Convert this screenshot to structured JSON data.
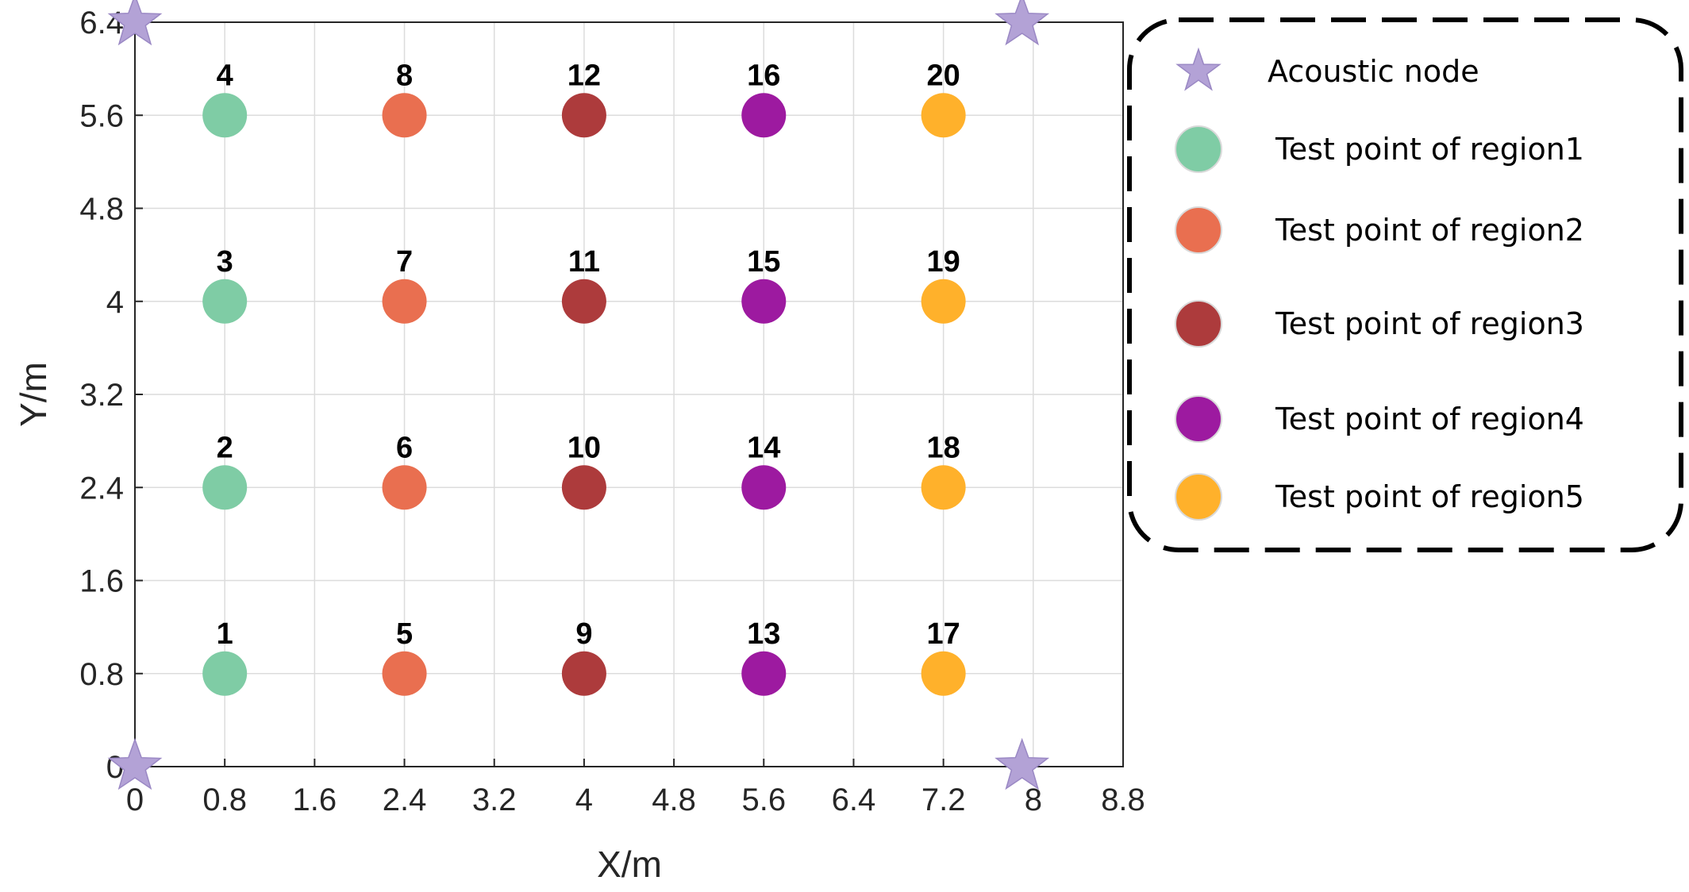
{
  "chart_data": {
    "type": "scatter",
    "xlabel": "X/m",
    "ylabel": "Y/m",
    "xlim": [
      0,
      8.8
    ],
    "ylim": [
      0,
      6.4
    ],
    "xticks": [
      "0",
      "0.8",
      "1.6",
      "2.4",
      "3.2",
      "4",
      "4.8",
      "5.6",
      "6.4",
      "7.2",
      "8",
      "8.8"
    ],
    "yticks": [
      "0",
      "0.8",
      "1.6",
      "2.4",
      "3.2",
      "4",
      "4.8",
      "5.6",
      "6.4"
    ],
    "grid": true,
    "legend_position": "right",
    "series": [
      {
        "name": "Acoustic node",
        "marker": "star",
        "color": "#b3a2d6",
        "points": [
          {
            "x": 0,
            "y": 6.4
          },
          {
            "x": 7.9,
            "y": 6.4
          },
          {
            "x": 0,
            "y": 0
          },
          {
            "x": 7.9,
            "y": 0
          }
        ]
      },
      {
        "name": "Test point of region1",
        "marker": "circle",
        "color": "#7fcca5",
        "points": [
          {
            "x": 0.8,
            "y": 0.8,
            "label": "1"
          },
          {
            "x": 0.8,
            "y": 2.4,
            "label": "2"
          },
          {
            "x": 0.8,
            "y": 4.0,
            "label": "3"
          },
          {
            "x": 0.8,
            "y": 5.6,
            "label": "4"
          }
        ]
      },
      {
        "name": "Test point of region2",
        "marker": "circle",
        "color": "#e96f50",
        "points": [
          {
            "x": 2.4,
            "y": 0.8,
            "label": "5"
          },
          {
            "x": 2.4,
            "y": 2.4,
            "label": "6"
          },
          {
            "x": 2.4,
            "y": 4.0,
            "label": "7"
          },
          {
            "x": 2.4,
            "y": 5.6,
            "label": "8"
          }
        ]
      },
      {
        "name": "Test point of region3",
        "marker": "circle",
        "color": "#ad3b3c",
        "points": [
          {
            "x": 4.0,
            "y": 0.8,
            "label": "9"
          },
          {
            "x": 4.0,
            "y": 2.4,
            "label": "10"
          },
          {
            "x": 4.0,
            "y": 4.0,
            "label": "11"
          },
          {
            "x": 4.0,
            "y": 5.6,
            "label": "12"
          }
        ]
      },
      {
        "name": "Test point of region4",
        "marker": "circle",
        "color": "#9d1aa0",
        "points": [
          {
            "x": 5.6,
            "y": 0.8,
            "label": "13"
          },
          {
            "x": 5.6,
            "y": 2.4,
            "label": "14"
          },
          {
            "x": 5.6,
            "y": 4.0,
            "label": "15"
          },
          {
            "x": 5.6,
            "y": 5.6,
            "label": "16"
          }
        ]
      },
      {
        "name": "Test point of region5",
        "marker": "circle",
        "color": "#ffb12b",
        "points": [
          {
            "x": 7.2,
            "y": 0.8,
            "label": "17"
          },
          {
            "x": 7.2,
            "y": 2.4,
            "label": "18"
          },
          {
            "x": 7.2,
            "y": 4.0,
            "label": "19"
          },
          {
            "x": 7.2,
            "y": 5.6,
            "label": "20"
          }
        ]
      }
    ]
  }
}
